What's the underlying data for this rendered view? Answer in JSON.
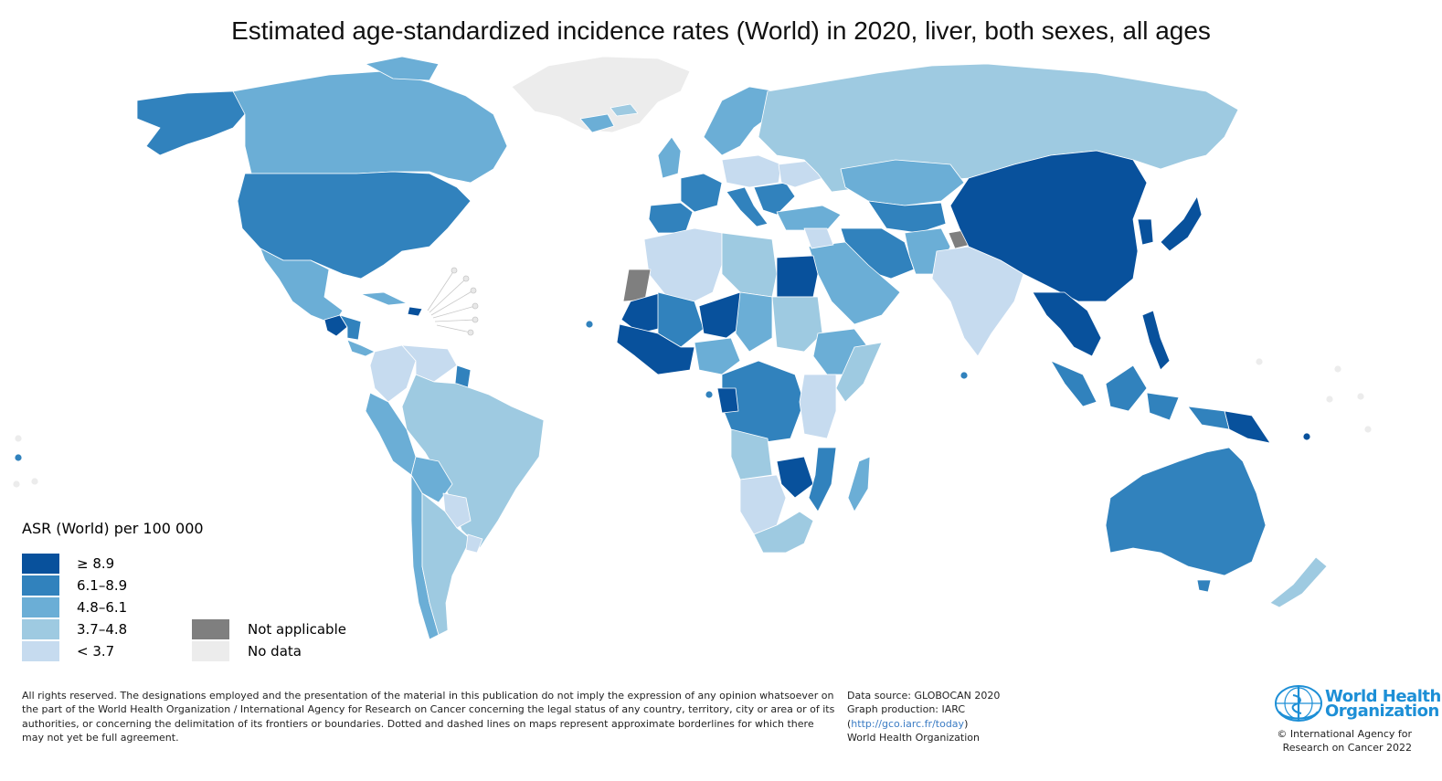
{
  "title": "Estimated age-standardized incidence rates (World) in 2020, liver, both sexes, all ages",
  "legend": {
    "title": "ASR (World) per 100 000",
    "classes": [
      {
        "label": "≥ 8.9",
        "color": "#08519c"
      },
      {
        "label": "6.1–8.9",
        "color": "#3182bd"
      },
      {
        "label": "4.8–6.1",
        "color": "#6baed6"
      },
      {
        "label": "3.7–4.8",
        "color": "#9ecae1"
      },
      {
        "label": "< 3.7",
        "color": "#c6dbef"
      }
    ],
    "special": [
      {
        "label": "Not applicable",
        "color": "#7f7f7f"
      },
      {
        "label": "No data",
        "color": "#ececec"
      }
    ]
  },
  "footer": {
    "disclaimer": "All rights reserved. The designations employed and the presentation of the material in this publication do not imply the expression of any opinion whatsoever on the part of the World Health Organization / International Agency for Research on Cancer concerning the legal status of any country, territory, city or area or of its authorities, or concerning the delimitation of its frontiers or boundaries. Dotted and dashed lines on maps represent approximate borderlines for which there may not yet be full agreement.",
    "source": "Data source: GLOBOCAN 2020",
    "production": "Graph production: IARC",
    "link_open": "(",
    "link": "http://gco.iarc.fr/today",
    "link_close": ")",
    "org": "World Health Organization"
  },
  "logo": {
    "line1": "World Health",
    "line2": "Organization",
    "copyright1": "© International Agency for",
    "copyright2": "Research on Cancer 2022"
  }
}
